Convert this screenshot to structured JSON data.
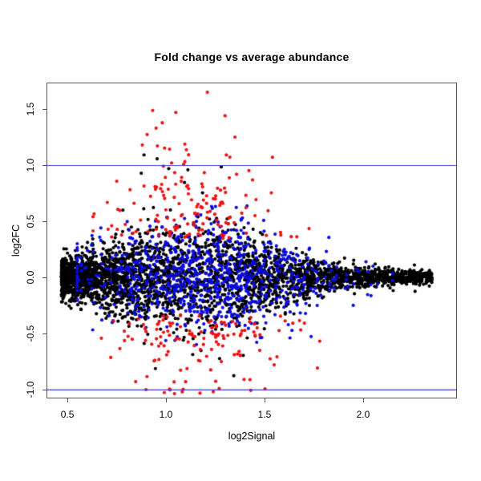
{
  "title": "Fold change vs average abundance",
  "axes": {
    "xlabel": "log2Signal",
    "ylabel": "log2FC",
    "x_tick_labels": [
      "0.5",
      "1.0",
      "1.5",
      "2.0"
    ],
    "y_tick_labels": [
      "-1.0",
      "-0.5",
      "0.0",
      "0.5",
      "1.0",
      "1.5"
    ]
  },
  "chart_data": {
    "type": "scatter",
    "title": "Fold change vs average abundance",
    "xlabel": "log2Signal",
    "ylabel": "log2FC",
    "xlim": [
      0.394,
      2.476
    ],
    "ylim": [
      -1.079,
      1.736
    ],
    "x_ticks": [
      0.5,
      1.0,
      1.5,
      2.0
    ],
    "y_ticks": [
      -1.0,
      -0.5,
      0.0,
      0.5,
      1.0,
      1.5
    ],
    "grid": false,
    "legend": "none",
    "background": "#ffffff",
    "frame_color": "#555555",
    "point_radius": 2.1,
    "seed": 1337,
    "hlines": [
      {
        "y": 1.0,
        "color": "#3333d6",
        "width": 1.2
      },
      {
        "y": -1.0,
        "color": "#3333d6",
        "width": 1.2
      }
    ],
    "series": [
      {
        "name": "black",
        "color": "#000000",
        "n": 3400,
        "shape": "MA-funnel: dense at low signal (x≈0.47), widest near x≈1.1, tapering tail to x≈2.35 at y≈0",
        "gen": {
          "x_min": 0.47,
          "x_range": 1.88,
          "x_exponent": 1.6,
          "y_base": 0.03,
          "y_amp": 0.21,
          "y_center": 1.12,
          "y_width": 0.3
        },
        "anchor_points": [
          [
            2.35,
            -0.005
          ],
          [
            2.31,
            0.02
          ],
          [
            2.27,
            -0.03
          ],
          [
            0.47,
            0.0
          ],
          [
            0.48,
            0.03
          ],
          [
            0.48,
            -0.03
          ]
        ],
        "outliers": {
          "pos": {
            "n": 6,
            "x": [
              0.85,
              1.35
            ],
            "y": [
              0.78,
              1.12
            ]
          },
          "neg": {
            "n": 4,
            "x": [
              0.9,
              1.45
            ],
            "y": [
              -0.95,
              -0.6
            ]
          }
        }
      },
      {
        "name": "blue",
        "color": "#0a0ae6",
        "n": 800,
        "shape": "scattered through mid-band |log2FC| < ~0.65, mostly 0.7 < x < 1.9",
        "gen": {
          "x_mean": 1.22,
          "x_sd": 0.34,
          "x_min": 0.55,
          "x_max": 2.15,
          "y_base": 0.05,
          "y_amp": 0.21,
          "y_center": 1.2,
          "y_width": 0.5,
          "y_clip": 0.66
        },
        "anchor_points": [
          [
            0.57,
            0.12
          ],
          [
            2.05,
            0.1
          ],
          [
            1.95,
            -0.25
          ]
        ]
      },
      {
        "name": "red",
        "color": "#ed1111",
        "n": 280,
        "shape": "high |fold change| points, |log2FC| mostly > 0.33, concentrated 0.65 < x < 1.75; extremes +1.65 and -1.02",
        "gen": {
          "x_mean": 1.15,
          "x_sd": 0.23,
          "x_min": 0.63,
          "x_max": 1.78,
          "mag_base": 0.34,
          "pos_sd": 0.33,
          "neg_sd": 0.26,
          "env_base": 0.4,
          "env_amp": 0.9,
          "env_center": 1.15,
          "env_width": 0.4,
          "pos_frac": 0.53,
          "pos_max": 1.65,
          "neg_max": 1.04
        },
        "anchor_points": [
          [
            1.21,
            1.65
          ],
          [
            1.05,
            1.47
          ],
          [
            1.3,
            1.44
          ],
          [
            0.95,
            1.33
          ],
          [
            1.35,
            1.25
          ],
          [
            1.54,
            1.07
          ],
          [
            0.88,
            1.18
          ],
          [
            1.24,
            -1.02
          ],
          [
            1.27,
            -0.99
          ],
          [
            1.1,
            -0.93
          ]
        ]
      }
    ]
  }
}
